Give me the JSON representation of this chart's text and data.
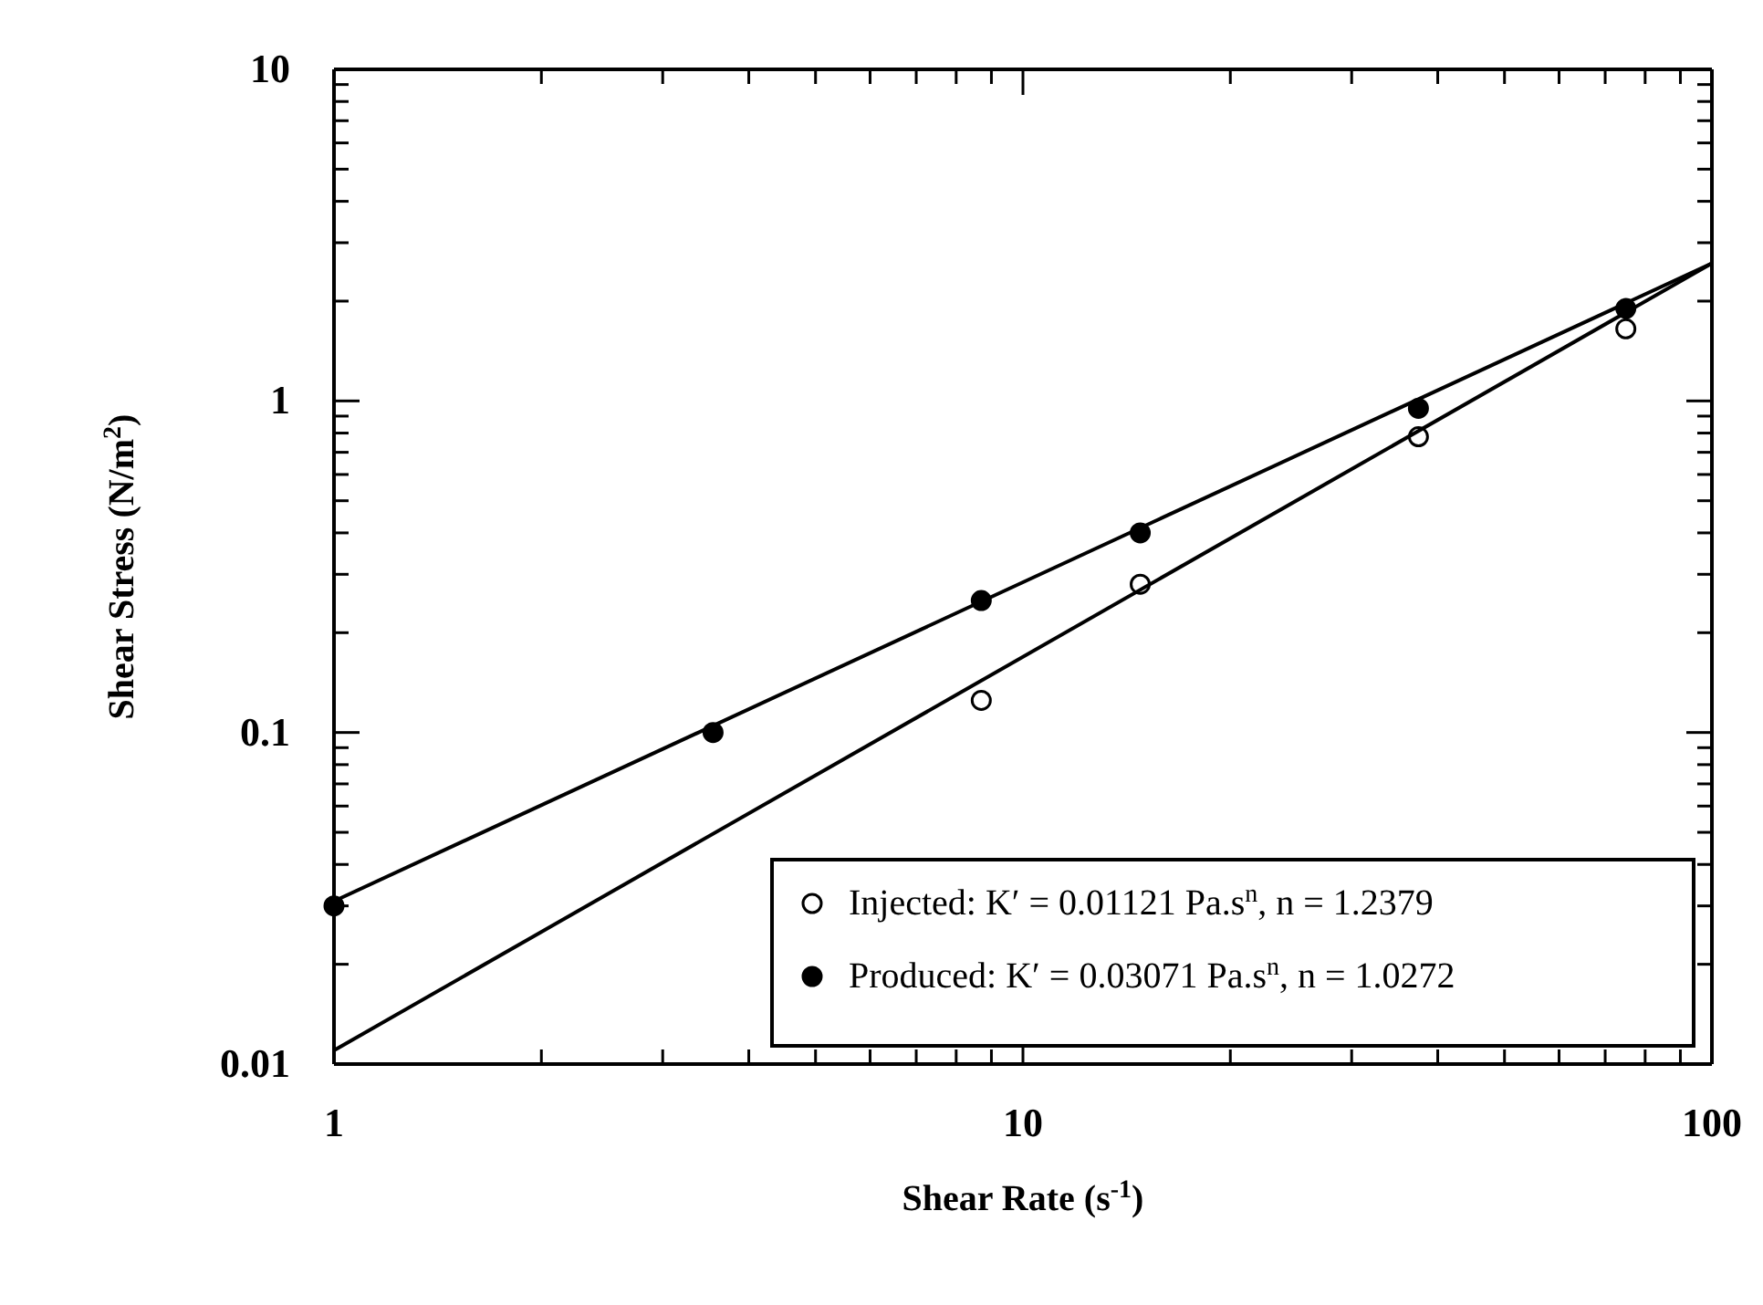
{
  "chart_data": {
    "type": "scatter",
    "xlabel": "Shear Rate (s$^{-1}$)",
    "ylabel": "Shear Stress (N/m$^{2}$)",
    "log": "xy",
    "xlim": [
      1,
      100
    ],
    "ylim": [
      0.01,
      10
    ],
    "xticks": [
      1,
      {
        "value": 2,
        "label": null
      },
      {
        "value": 3,
        "label": null
      },
      {
        "value": 4,
        "label": null
      },
      {
        "value": 5,
        "label": null
      },
      {
        "value": 6,
        "label": null
      },
      {
        "value": 7,
        "label": null
      },
      {
        "value": 8,
        "label": null
      },
      {
        "value": 9,
        "label": null
      },
      10,
      {
        "value": 20,
        "label": null
      },
      {
        "value": 30,
        "label": null
      },
      {
        "value": 40,
        "label": null
      },
      {
        "value": 50,
        "label": null
      },
      {
        "value": 60,
        "label": null
      },
      {
        "value": 70,
        "label": null
      },
      {
        "value": 80,
        "label": null
      },
      {
        "value": 90,
        "label": null
      },
      100
    ],
    "yticks": [
      0.01,
      {
        "value": 0.02,
        "label": null
      },
      {
        "value": 0.03,
        "label": null
      },
      {
        "value": 0.04,
        "label": null
      },
      {
        "value": 0.05,
        "label": null
      },
      {
        "value": 0.06,
        "label": null
      },
      {
        "value": 0.07,
        "label": null
      },
      {
        "value": 0.08,
        "label": null
      },
      {
        "value": 0.09,
        "label": null
      },
      0.1,
      {
        "value": 0.2,
        "label": null
      },
      {
        "value": 0.3,
        "label": null
      },
      {
        "value": 0.4,
        "label": null
      },
      {
        "value": 0.5,
        "label": null
      },
      {
        "value": 0.6,
        "label": null
      },
      {
        "value": 0.7,
        "label": null
      },
      {
        "value": 0.8,
        "label": null
      },
      {
        "value": 0.9,
        "label": null
      },
      1,
      {
        "value": 2,
        "label": null
      },
      {
        "value": 3,
        "label": null
      },
      {
        "value": 4,
        "label": null
      },
      {
        "value": 5,
        "label": null
      },
      {
        "value": 6,
        "label": null
      },
      {
        "value": 7,
        "label": null
      },
      {
        "value": 8,
        "label": null
      },
      {
        "value": 9,
        "label": null
      },
      10
    ],
    "grid": false,
    "legend": "bottom right",
    "series": [
      {
        "name": "Injected: K′ =  0.01121 Pa.s$^{n}$, n =  1.2379",
        "color": "#ffffff",
        "marker": "circle",
        "x": [
          8.7,
          14.8,
          37.5,
          75
        ],
        "values": [
          0.125,
          0.28,
          0.78,
          1.65
        ]
      },
      {
        "name": "Produced: K′ = 0.03071 Pa.s$^{n}$, n =  1.0272",
        "color": "#000000",
        "marker": "circle",
        "x": [
          1,
          3.55,
          8.7,
          14.8,
          37.5,
          75
        ],
        "values": [
          0.03,
          0.1,
          0.25,
          0.4,
          0.95,
          1.9
        ]
      },
      {
        "type": "line",
        "color": "#000000",
        "x": [
          1,
          100
        ],
        "values": [
          0.011,
          2.6
        ]
      },
      {
        "type": "line",
        "color": "#000000",
        "x": [
          1,
          100
        ],
        "values": [
          0.031,
          2.6
        ]
      }
    ]
  }
}
